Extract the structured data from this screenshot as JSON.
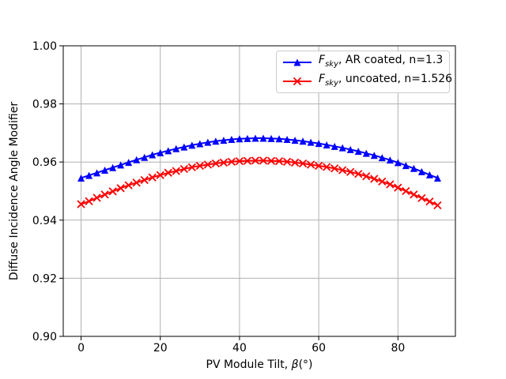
{
  "figure": {
    "background": "#ffffff",
    "grid_color": "#b0b0b0",
    "spine_color": "#000000",
    "text_color": "#000000",
    "legend_border_color": "#cccccc"
  },
  "axes": {
    "xlabel_pre": "PV Module Tilt, ",
    "xlabel_beta": "β",
    "xlabel_post": "(°)",
    "ylabel": "Diffuse Incidence Angle Modifier"
  },
  "legend": {
    "entries": [
      {
        "f": "F",
        "sub": "sky",
        "rest": ", AR coated, n=1.3"
      },
      {
        "f": "F",
        "sub": "sky",
        "rest": ", uncoated, n=1.526"
      }
    ]
  },
  "chart_data": {
    "type": "line",
    "title": "",
    "xlabel": "PV Module Tilt, β(°)",
    "ylabel": "Diffuse Incidence Angle Modifier",
    "xlim": [
      -4.5,
      94.5
    ],
    "ylim": [
      0.9,
      1.0
    ],
    "grid": true,
    "legend_position": "upper right",
    "xticks": [
      0,
      20,
      40,
      60,
      80
    ],
    "xtick_labels": [
      "0",
      "20",
      "40",
      "60",
      "80"
    ],
    "ytick_values": [
      0.9,
      0.92,
      0.94,
      0.96,
      0.98,
      1.0
    ],
    "ytick_labels": [
      "0.90",
      "0.92",
      "0.94",
      "0.96",
      "0.98",
      "1.00"
    ],
    "x": [
      0,
      2,
      4,
      6,
      8,
      10,
      12,
      14,
      16,
      18,
      20,
      22,
      24,
      26,
      28,
      30,
      32,
      34,
      36,
      38,
      40,
      42,
      44,
      46,
      48,
      50,
      52,
      54,
      56,
      58,
      60,
      62,
      64,
      66,
      68,
      70,
      72,
      74,
      76,
      78,
      80,
      82,
      84,
      86,
      88,
      90
    ],
    "series": [
      {
        "name": "F_sky, AR coated, n=1.3",
        "color": "#0000ff",
        "marker": "triangle-up",
        "values": [
          0.9545,
          0.9554,
          0.9563,
          0.9572,
          0.9581,
          0.959,
          0.9599,
          0.9608,
          0.9616,
          0.9625,
          0.9632,
          0.9639,
          0.9646,
          0.9652,
          0.9658,
          0.9663,
          0.9668,
          0.9672,
          0.9675,
          0.9678,
          0.968,
          0.9681,
          0.9682,
          0.9682,
          0.9681,
          0.968,
          0.9678,
          0.9675,
          0.9672,
          0.9668,
          0.9664,
          0.9659,
          0.9654,
          0.9649,
          0.9643,
          0.9637,
          0.963,
          0.9623,
          0.9615,
          0.9607,
          0.9598,
          0.9588,
          0.9578,
          0.9567,
          0.9556,
          0.9545
        ]
      },
      {
        "name": "F_sky, uncoated, n=1.526",
        "color": "#ff0000",
        "marker": "x",
        "values": [
          0.9455,
          0.9465,
          0.9477,
          0.9488,
          0.9499,
          0.951,
          0.952,
          0.9529,
          0.9538,
          0.9547,
          0.9555,
          0.9563,
          0.9569,
          0.9576,
          0.9582,
          0.9587,
          0.9591,
          0.9595,
          0.9598,
          0.9601,
          0.9603,
          0.9604,
          0.9605,
          0.9605,
          0.9604,
          0.9603,
          0.9601,
          0.9598,
          0.9595,
          0.9591,
          0.9587,
          0.9583,
          0.9578,
          0.9572,
          0.9566,
          0.9559,
          0.9551,
          0.9542,
          0.9533,
          0.9523,
          0.9512,
          0.95,
          0.9488,
          0.9476,
          0.9464,
          0.9451
        ]
      }
    ]
  }
}
